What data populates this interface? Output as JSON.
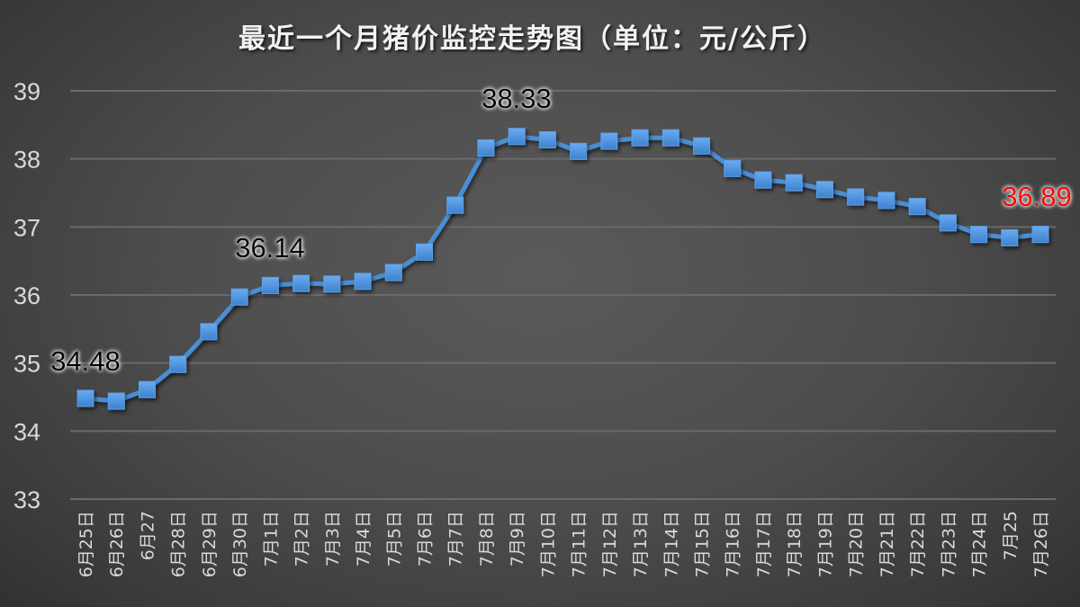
{
  "title": "最近一个月猪价监控走势图（单位：元/公斤）",
  "colors": {
    "line": "#4a8fd6",
    "marker": "#4f96e0",
    "label_default": "#000000",
    "label_highlight": "#ff0000",
    "axis_text": "#d9d9d9"
  },
  "chart_data": {
    "type": "line",
    "title": "最近一个月猪价监控走势图（单位：元/公斤）",
    "xlabel": "",
    "ylabel": "元/公斤",
    "ylim": [
      33,
      39
    ],
    "yticks": [
      33,
      34,
      35,
      36,
      37,
      38,
      39
    ],
    "grid": true,
    "legend": "none",
    "categories": [
      "6月25日",
      "6月26日",
      "6月27",
      "6月28日",
      "6月29日",
      "6月30日",
      "7月1日",
      "7月2日",
      "7月3日",
      "7月4日",
      "7月5日",
      "7月6日",
      "7月7日",
      "7月8日",
      "7月9日",
      "7月10日",
      "7月11日",
      "7月12日",
      "7月13日",
      "7月14日",
      "7月15日",
      "7月16日",
      "7月17日",
      "7月18日",
      "7月19日",
      "7月20日",
      "7月21日",
      "7月22日",
      "7月23日",
      "7月24日",
      "7月25",
      "7月26日"
    ],
    "series": [
      {
        "name": "猪价",
        "marker": "square",
        "values": [
          34.48,
          34.44,
          34.61,
          34.98,
          35.46,
          35.97,
          36.14,
          36.17,
          36.16,
          36.2,
          36.33,
          36.63,
          37.32,
          38.16,
          38.33,
          38.28,
          38.11,
          38.26,
          38.31,
          38.31,
          38.19,
          37.86,
          37.69,
          37.65,
          37.55,
          37.44,
          37.39,
          37.3,
          37.06,
          36.89,
          36.84,
          36.89
        ]
      }
    ],
    "annotations": [
      {
        "index": 0,
        "text": "34.48",
        "color": "#000000"
      },
      {
        "index": 6,
        "text": "36.14",
        "color": "#000000"
      },
      {
        "index": 14,
        "text": "38.33",
        "color": "#000000"
      },
      {
        "index": 31,
        "text": "36.89",
        "color": "#ff0000"
      }
    ]
  }
}
